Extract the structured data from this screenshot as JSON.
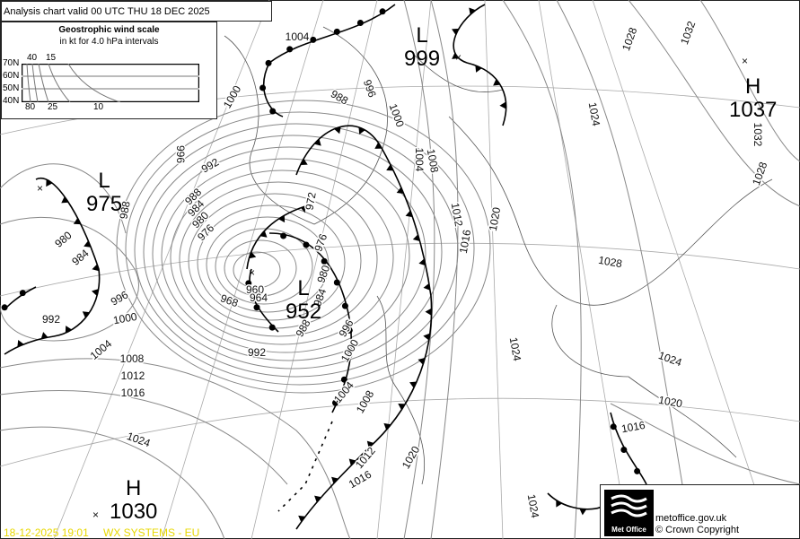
{
  "header": {
    "title": "Analysis chart valid 00 UTC THU 18  DEC 2025"
  },
  "wind_scale": {
    "title": "Geostrophic wind scale",
    "subtitle": "in kt for 4.0 hPa intervals",
    "latitudes": [
      "70N",
      "60N",
      "50N",
      "40N"
    ],
    "top_labels": [
      "40",
      "15"
    ],
    "bottom_labels": [
      "80",
      "25",
      "10"
    ]
  },
  "pressure_centres": [
    {
      "type": "L",
      "value": "999"
    },
    {
      "type": "L",
      "value": "975"
    },
    {
      "type": "L",
      "value": "952"
    },
    {
      "type": "H",
      "value": "1037"
    },
    {
      "type": "H",
      "value": "1030"
    }
  ],
  "isobar_labels": [
    "1004",
    "1000",
    "996",
    "992",
    "988",
    "984",
    "980",
    "976",
    "972",
    "976",
    "980",
    "984",
    "988",
    "992",
    "996",
    "1000",
    "1004",
    "1008",
    "1012",
    "1016",
    "1020",
    "1024",
    "1024",
    "1020",
    "1016",
    "1028",
    "1024",
    "1020",
    "1016",
    "1012",
    "1008",
    "1004",
    "1000",
    "996",
    "988",
    "1028",
    "1032",
    "1024",
    "1032",
    "1028",
    "980",
    "984",
    "988",
    "992",
    "996",
    "1000",
    "1004",
    "1008",
    "1012",
    "1016",
    "1024",
    "960",
    "964",
    "968"
  ],
  "footer": {
    "logo_text": "Met Office",
    "site": "metoffice.gov.uk",
    "copyright": "© Crown Copyright",
    "timestamp": "18-12-2025  19:01",
    "source": "WX SYSTEMS - EU"
  },
  "colors": {
    "isobar": "#888888",
    "front": "#000000",
    "stamp": "#e8d800"
  }
}
